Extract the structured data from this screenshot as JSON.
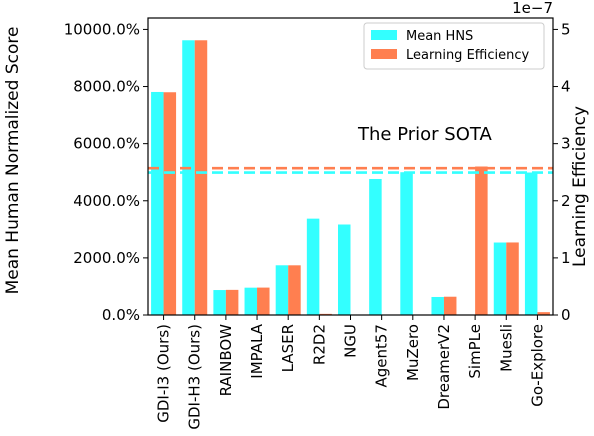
{
  "chart_data": {
    "type": "bar",
    "categories": [
      "GDI-I3 (Ours)",
      "GDI-H3 (Ours)",
      "RAINBOW",
      "IMPALA",
      "LASER",
      "R2D2",
      "NGU",
      "Agent57",
      "MuZero",
      "DreamerV2",
      "SimPLe",
      "Muesli",
      "Go-Explore"
    ],
    "series": [
      {
        "name": "Mean HNS",
        "axis": "left",
        "color": "#33ffff",
        "values": [
          7810,
          9620,
          874,
          957,
          1741,
          3374,
          3169,
          4763,
          5000,
          631,
          0,
          2538,
          4989
        ]
      },
      {
        "name": "Learning Efficiency",
        "axis": "right",
        "color": "#ff7f50",
        "values": [
          3.9e-07,
          4.81e-07,
          4.4e-08,
          4.8e-08,
          8.7e-08,
          2e-09,
          0,
          0,
          0,
          3.2e-08,
          2.6e-07,
          1.27e-07,
          5e-09
        ]
      }
    ],
    "ylabel": "Mean Human Normalized Score",
    "y2label": "Learning Efficiency",
    "y2_offset_label": "1e−7",
    "ylim": [
      0,
      10400
    ],
    "y2lim": [
      0,
      5.2e-07
    ],
    "yticks": [
      "0.0%",
      "2000.0%",
      "4000.0%",
      "6000.0%",
      "8000.0%",
      "10000.0%"
    ],
    "ytick_values": [
      0,
      2000,
      4000,
      6000,
      8000,
      10000
    ],
    "y2ticks": [
      "0",
      "1",
      "2",
      "3",
      "4",
      "5"
    ],
    "y2tick_values": [
      0,
      1e-07,
      2e-07,
      3e-07,
      4e-07,
      5e-07
    ],
    "reference_lines": [
      {
        "series": "Mean HNS",
        "axis": "left",
        "value": 4989,
        "style": "dashed",
        "color": "#33ffff"
      },
      {
        "series": "Learning Efficiency",
        "axis": "right",
        "value": 2.57e-07,
        "style": "dashed",
        "color": "#ff7f50"
      }
    ],
    "annotation": "The Prior SOTA",
    "legend_position": "top-right",
    "grid": false
  }
}
